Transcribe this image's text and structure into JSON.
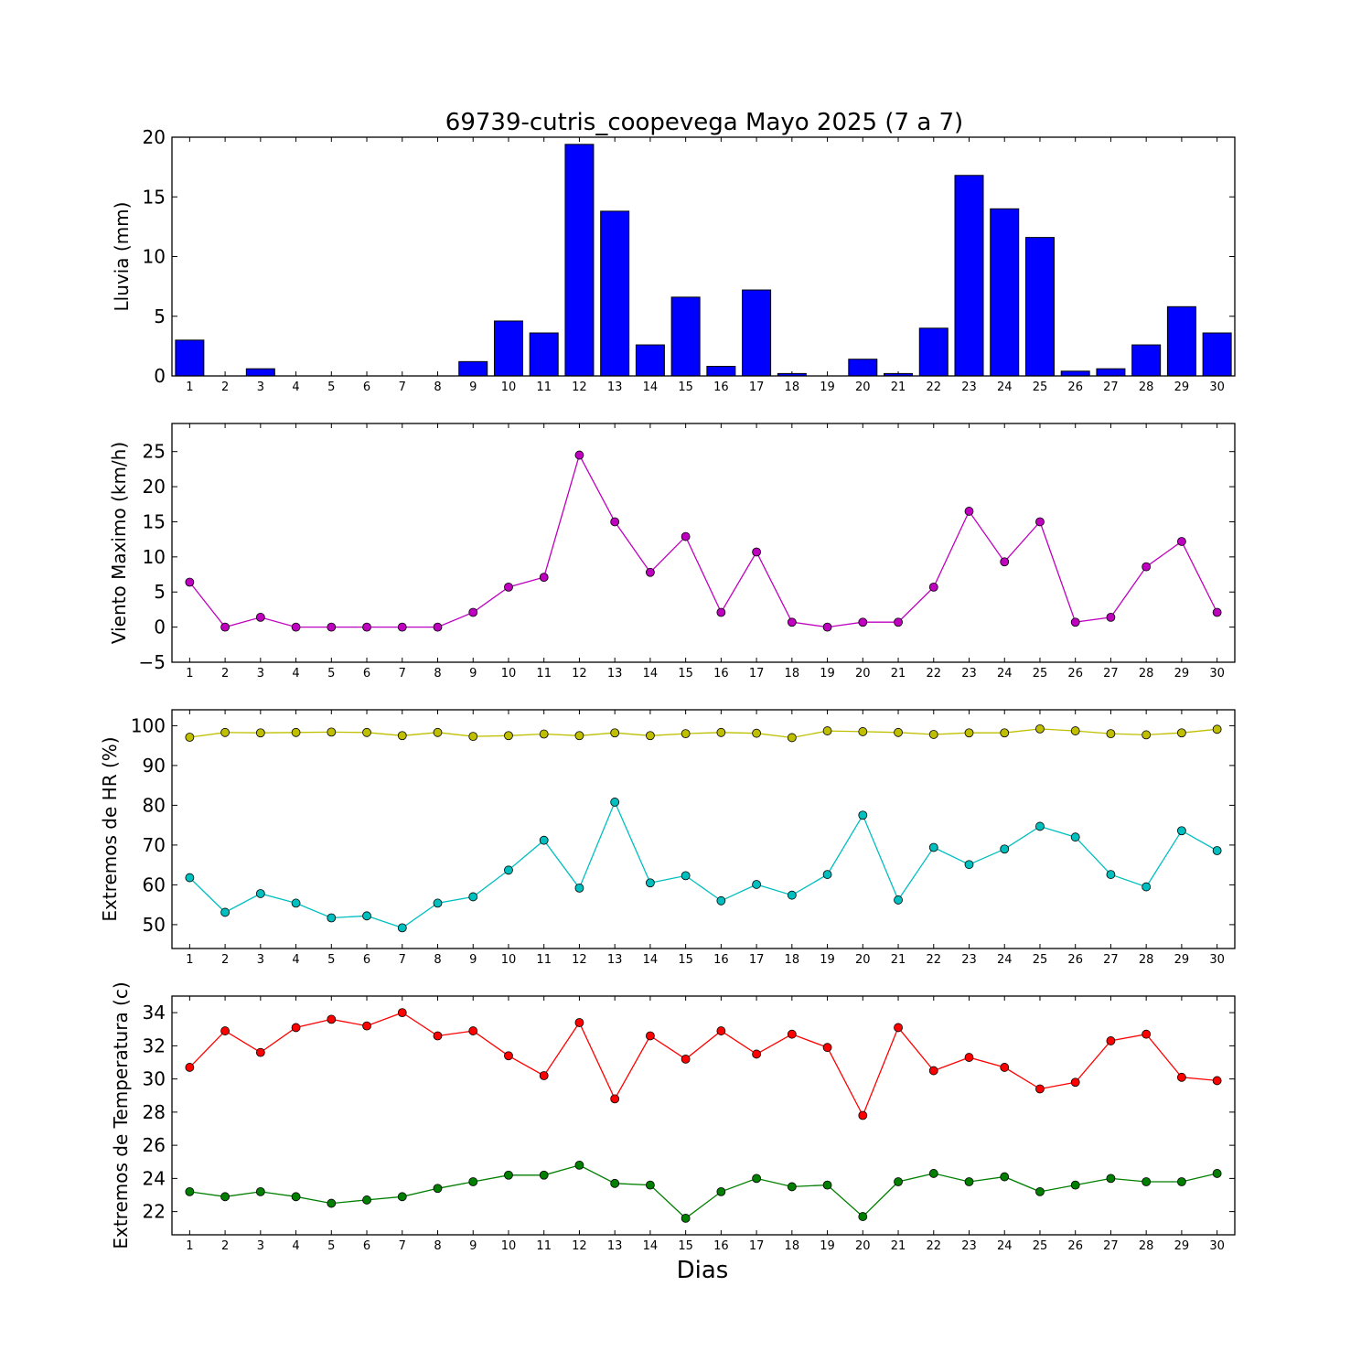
{
  "figure": {
    "title": "69739-cutris_coopevega Mayo 2025  (7 a 7)",
    "xlabel": "Dias"
  },
  "chart_data": [
    {
      "type": "bar",
      "ylabel": "Lluvia (mm)",
      "ylim": [
        0,
        20
      ],
      "yticks": [
        0,
        5,
        10,
        15,
        20
      ],
      "x": [
        1,
        2,
        3,
        4,
        5,
        6,
        7,
        8,
        9,
        10,
        11,
        12,
        13,
        14,
        15,
        16,
        17,
        18,
        19,
        20,
        21,
        22,
        23,
        24,
        25,
        26,
        27,
        28,
        29,
        30
      ],
      "xlim": [
        0.5,
        30.5
      ],
      "series": [
        {
          "color": "#0000ff",
          "values": [
            3.0,
            0,
            0.6,
            0,
            0,
            0,
            0,
            0,
            1.2,
            4.6,
            3.6,
            19.4,
            13.8,
            2.6,
            6.6,
            0.8,
            7.2,
            0.2,
            0,
            1.4,
            0.2,
            4.0,
            16.8,
            14.0,
            11.6,
            0.4,
            0.6,
            2.6,
            5.8,
            3.6
          ]
        }
      ]
    },
    {
      "type": "line",
      "ylabel": "Viento Maximo (km/h)",
      "ylim": [
        -5,
        29
      ],
      "yticks": [
        -5,
        0,
        5,
        10,
        15,
        20,
        25
      ],
      "x": [
        1,
        2,
        3,
        4,
        5,
        6,
        7,
        8,
        9,
        10,
        11,
        12,
        13,
        14,
        15,
        16,
        17,
        18,
        19,
        20,
        21,
        22,
        23,
        24,
        25,
        26,
        27,
        28,
        29,
        30
      ],
      "xlim": [
        0.5,
        30.5
      ],
      "series": [
        {
          "color": "#bf00bf",
          "values": [
            6.4,
            0,
            1.4,
            0,
            0,
            0,
            0,
            0,
            2.1,
            5.7,
            7.1,
            24.5,
            15.0,
            7.8,
            12.9,
            2.1,
            10.7,
            0.7,
            0,
            0.7,
            0.7,
            5.7,
            16.5,
            9.3,
            15.0,
            0.7,
            1.4,
            8.6,
            12.2,
            2.1
          ]
        }
      ]
    },
    {
      "type": "line",
      "ylabel": "Extremos de HR (%)",
      "ylim": [
        44,
        104
      ],
      "yticks": [
        50,
        60,
        70,
        80,
        90,
        100
      ],
      "x": [
        1,
        2,
        3,
        4,
        5,
        6,
        7,
        8,
        9,
        10,
        11,
        12,
        13,
        14,
        15,
        16,
        17,
        18,
        19,
        20,
        21,
        22,
        23,
        24,
        25,
        26,
        27,
        28,
        29,
        30
      ],
      "xlim": [
        0.5,
        30.5
      ],
      "series": [
        {
          "color": "#bfbf00",
          "values": [
            97.1,
            98.3,
            98.2,
            98.3,
            98.4,
            98.3,
            97.5,
            98.3,
            97.3,
            97.5,
            97.9,
            97.5,
            98.2,
            97.5,
            98.0,
            98.3,
            98.1,
            97.0,
            98.7,
            98.5,
            98.3,
            97.8,
            98.2,
            98.2,
            99.2,
            98.7,
            98.0,
            97.7,
            98.2,
            99.1
          ]
        },
        {
          "color": "#00bfbf",
          "values": [
            61.8,
            53.1,
            57.8,
            55.4,
            51.7,
            52.2,
            49.2,
            55.4,
            57.0,
            63.7,
            71.2,
            59.2,
            80.8,
            60.5,
            62.3,
            56.0,
            60.1,
            57.4,
            62.6,
            77.5,
            56.2,
            69.4,
            65.1,
            69.0,
            74.7,
            72.0,
            62.6,
            59.5,
            73.6,
            68.6
          ]
        }
      ]
    },
    {
      "type": "line",
      "ylabel": "Extremos de Temperatura (c)",
      "ylim": [
        20.6,
        35.0
      ],
      "yticks": [
        22,
        24,
        26,
        28,
        30,
        32,
        34
      ],
      "x": [
        1,
        2,
        3,
        4,
        5,
        6,
        7,
        8,
        9,
        10,
        11,
        12,
        13,
        14,
        15,
        16,
        17,
        18,
        19,
        20,
        21,
        22,
        23,
        24,
        25,
        26,
        27,
        28,
        29,
        30
      ],
      "xlim": [
        0.5,
        30.5
      ],
      "series": [
        {
          "color": "#ff0000",
          "values": [
            30.7,
            32.9,
            31.6,
            33.1,
            33.6,
            33.2,
            34.0,
            32.6,
            32.9,
            31.4,
            30.2,
            33.4,
            28.8,
            32.6,
            31.2,
            32.9,
            31.5,
            32.7,
            31.9,
            27.8,
            33.1,
            30.5,
            31.3,
            30.7,
            29.4,
            29.8,
            32.3,
            32.7,
            30.1,
            29.9
          ]
        },
        {
          "color": "#007f00",
          "values": [
            23.2,
            22.9,
            23.2,
            22.9,
            22.5,
            22.7,
            22.9,
            23.4,
            23.8,
            24.2,
            24.2,
            24.8,
            23.7,
            23.6,
            21.6,
            23.2,
            24.0,
            23.5,
            23.6,
            21.7,
            23.8,
            24.3,
            23.8,
            24.1,
            23.2,
            23.6,
            24.0,
            23.8,
            23.8,
            24.3
          ]
        }
      ]
    }
  ]
}
